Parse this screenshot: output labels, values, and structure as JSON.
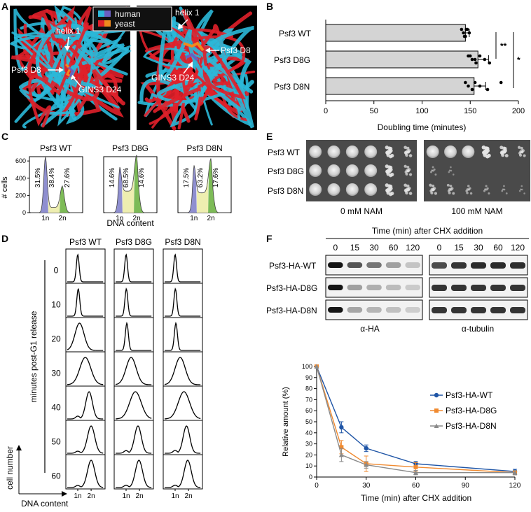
{
  "panel_labels": [
    "A",
    "B",
    "C",
    "D",
    "E",
    "F"
  ],
  "panel_a": {
    "legend": [
      {
        "label": "human",
        "colors": [
          "#2bb8d8",
          "#6a5fc0"
        ]
      },
      {
        "label": "yeast",
        "colors": [
          "#e0202a",
          "#f08a1e"
        ]
      }
    ],
    "left_view": {
      "helix_label": "helix 1",
      "residue_psf3": "Psf3 D8",
      "residue_gins3": "GINS3 D24"
    },
    "right_view": {
      "helix_label": "helix 1",
      "residue_psf3": "Psf3 D8",
      "residue_gins3": "GINS3 D24"
    }
  },
  "chart_data": [
    {
      "panel": "B",
      "type": "bar",
      "orientation": "horizontal",
      "categories": [
        "Psf3 WT",
        "Psf3 D8G",
        "Psf3 D8N"
      ],
      "values": [
        145,
        158,
        154
      ],
      "error": [
        4,
        11,
        12
      ],
      "points": [
        [
          141,
          143,
          145,
          147,
          149,
          144,
          146
        ],
        [
          148,
          152,
          156,
          160,
          165,
          170,
          150,
          155
        ],
        [
          145,
          148,
          152,
          155,
          160,
          168,
          182
        ]
      ],
      "xlabel": "Doubling time (minutes)",
      "xlim": [
        0,
        200
      ],
      "xticks": [
        0,
        50,
        100,
        150,
        200
      ],
      "significance": [
        {
          "from": "Psf3 WT",
          "to": "Psf3 D8G",
          "label": "**"
        },
        {
          "from": "Psf3 WT",
          "to": "Psf3 D8N",
          "label": "*"
        }
      ],
      "bar_color": "#d4d4d4"
    },
    {
      "panel": "C",
      "type": "area",
      "ylabel": "# cells",
      "xlabel": "DNA content",
      "yticks": [
        0,
        200,
        400,
        600
      ],
      "ylim": [
        0,
        650
      ],
      "xtick_labels": [
        "1n",
        "2n"
      ],
      "histograms": [
        {
          "title": "Psf3 WT",
          "g1": "31.5%",
          "s": "38.4%",
          "g2": "27.6%",
          "peak1": 590,
          "peak2": 250,
          "valley": 60
        },
        {
          "title": "Psf3 D8G",
          "g1": "14.6%",
          "s": "68.5%",
          "g2": "14.6%",
          "peak1": 280,
          "peak2": 420,
          "valley": 250
        },
        {
          "title": "Psf3 D8N",
          "g1": "17.5%",
          "s": "63.2%",
          "g2": "17.6%",
          "peak1": 320,
          "peak2": 400,
          "valley": 230
        }
      ],
      "colors": {
        "g1": "#8f8fd0",
        "s": "#eeeeb0",
        "g2": "#7dbb57"
      }
    },
    {
      "panel": "D",
      "type": "line",
      "columns": [
        "Psf3 WT",
        "Psf3 D8G",
        "Psf3 D8N"
      ],
      "rows": [
        "0",
        "10",
        "20",
        "30",
        "40",
        "50",
        "60"
      ],
      "ylabel": "minutes post-G1 release",
      "axis_y": "cell number",
      "axis_x": "DNA content",
      "xtick_labels": [
        "1n",
        "2n"
      ],
      "peak_position": [
        [
          0.25,
          0.27,
          0.32,
          0.55,
          0.7,
          0.78,
          0.78
        ],
        [
          0.25,
          0.26,
          0.28,
          0.45,
          0.62,
          0.72,
          0.76
        ],
        [
          0.25,
          0.26,
          0.28,
          0.45,
          0.6,
          0.7,
          0.75
        ]
      ]
    },
    {
      "panel": "F",
      "type": "line",
      "x": [
        0,
        15,
        30,
        60,
        120
      ],
      "series": [
        {
          "name": "Psf3-HA-WT",
          "color": "#1f55a6",
          "marker": "circle",
          "values": [
            100,
            45,
            26,
            12,
            5
          ],
          "error": [
            0,
            5,
            3,
            2,
            2
          ]
        },
        {
          "name": "Psf3-HA-D8G",
          "color": "#f08a30",
          "marker": "square",
          "values": [
            100,
            27,
            12,
            9,
            4
          ],
          "error": [
            0,
            6,
            7,
            4,
            2
          ]
        },
        {
          "name": "Psf3-HA-D8N",
          "color": "#8a8a8a",
          "marker": "triangle",
          "values": [
            100,
            20,
            11,
            4,
            4
          ],
          "error": [
            0,
            6,
            3,
            2,
            2
          ]
        }
      ],
      "xlabel": "Time (min) after CHX addition",
      "ylabel": "Relative amount (%)",
      "xlim": [
        0,
        120
      ],
      "ylim": [
        0,
        100
      ],
      "xticks": [
        0,
        30,
        60,
        90,
        120
      ],
      "yticks": [
        0,
        10,
        20,
        30,
        40,
        50,
        60,
        70,
        80,
        90,
        100
      ],
      "legend_position": "right"
    }
  ],
  "panel_e": {
    "rows": [
      "Psf3 WT",
      "Psf3 D8G",
      "Psf3 D8N"
    ],
    "plates": [
      {
        "label": "0 mM NAM",
        "growth": [
          [
            1,
            1,
            1,
            1,
            0.8,
            0.6
          ],
          [
            1,
            1,
            1,
            1,
            0.8,
            0.5
          ],
          [
            1,
            1,
            1,
            1,
            0.8,
            0.6
          ]
        ]
      },
      {
        "label": "100 mM NAM",
        "growth": [
          [
            1,
            1,
            1,
            0.9,
            0.7,
            0.5
          ],
          [
            0.15,
            0.05,
            0,
            0,
            0,
            0
          ],
          [
            0.5,
            0.4,
            0.3,
            0.2,
            0.1,
            0.05
          ]
        ]
      }
    ]
  },
  "panel_f_blot": {
    "header": "Time (min) after CHX addition",
    "timepoints": [
      "0",
      "15",
      "30",
      "60",
      "120"
    ],
    "rows": [
      "Psf3-HA-WT",
      "Psf3-HA-D8G",
      "Psf3-HA-D8N"
    ],
    "antibodies": [
      "α-HA",
      "α-tubulin"
    ],
    "ha_intensity": [
      [
        1,
        0.7,
        0.55,
        0.35,
        0.18
      ],
      [
        1,
        0.35,
        0.28,
        0.22,
        0.15
      ],
      [
        1,
        0.32,
        0.25,
        0.2,
        0.14
      ]
    ],
    "tubulin_intensity": [
      [
        0.75,
        0.85,
        0.9,
        0.9,
        0.88
      ],
      [
        0.85,
        0.85,
        0.85,
        0.85,
        0.85
      ],
      [
        0.85,
        0.85,
        0.85,
        0.85,
        0.85
      ]
    ]
  }
}
